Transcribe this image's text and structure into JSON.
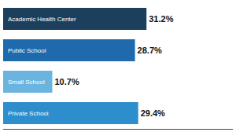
{
  "chart_data": {
    "type": "bar",
    "orientation": "horizontal",
    "categories": [
      "Academic Health Center",
      "Public School",
      "Small School",
      "Private School"
    ],
    "values": [
      31.2,
      28.7,
      10.7,
      29.4
    ],
    "value_labels": [
      "31.2%",
      "28.7%",
      "10.7%",
      "29.4%"
    ],
    "colors": [
      "#1d3f5e",
      "#1e6aad",
      "#6ab4e0",
      "#2e8dcc"
    ],
    "xlim": [
      0,
      50
    ],
    "data_labels": true,
    "tick_labels": false,
    "grid": false
  }
}
